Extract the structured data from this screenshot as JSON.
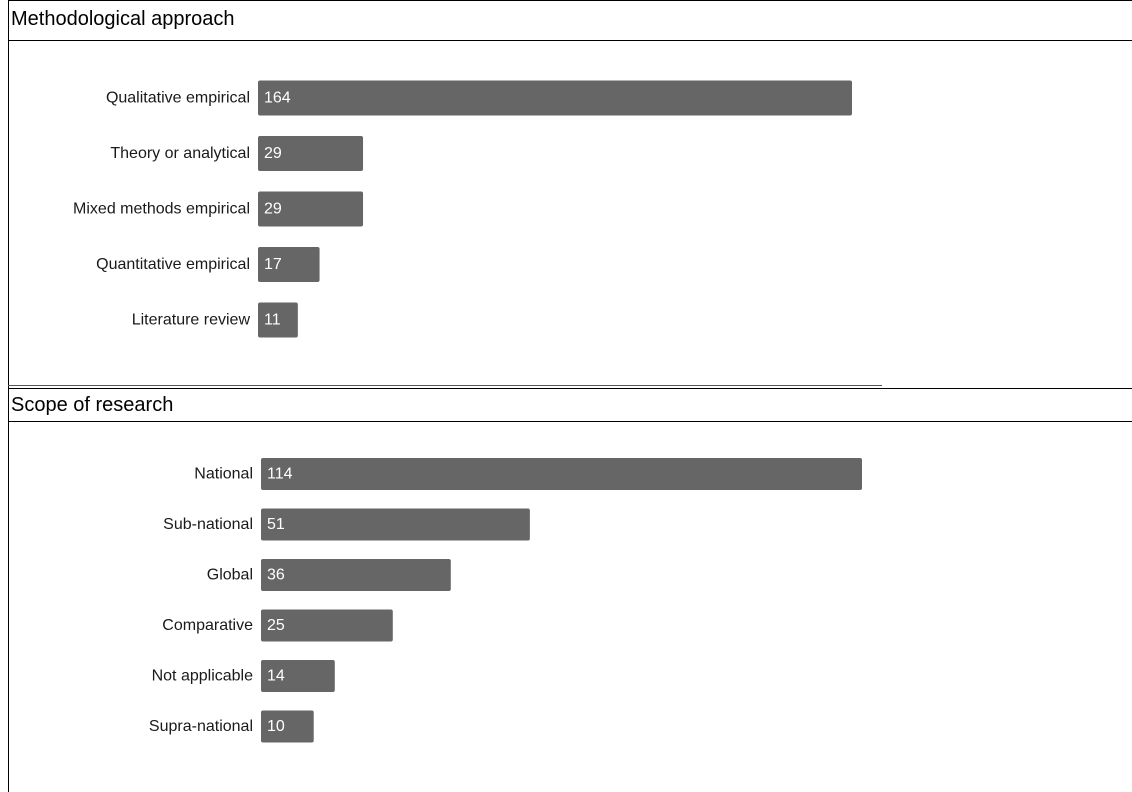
{
  "chart_data": [
    {
      "type": "bar",
      "orientation": "horizontal",
      "title": "Methodological approach",
      "categories": [
        "Qualitative empirical",
        "Theory or analytical",
        "Mixed methods empirical",
        "Quantitative empirical",
        "Literature review"
      ],
      "values": [
        164,
        29,
        29,
        17,
        11
      ],
      "xlim": [
        0,
        164
      ],
      "grid": false,
      "bar_color": "#666666",
      "value_labels": [
        "164",
        "29",
        "29",
        "17",
        "11"
      ]
    },
    {
      "type": "bar",
      "orientation": "horizontal",
      "title": "Scope of research",
      "categories": [
        "National",
        "Sub-national",
        "Global",
        "Comparative",
        "Not applicable",
        "Supra-national"
      ],
      "values": [
        114,
        51,
        36,
        25,
        14,
        10
      ],
      "xlim": [
        0,
        114
      ],
      "grid": false,
      "bar_color": "#666666",
      "value_labels": [
        "114",
        "51",
        "36",
        "25",
        "14",
        "10"
      ]
    }
  ]
}
